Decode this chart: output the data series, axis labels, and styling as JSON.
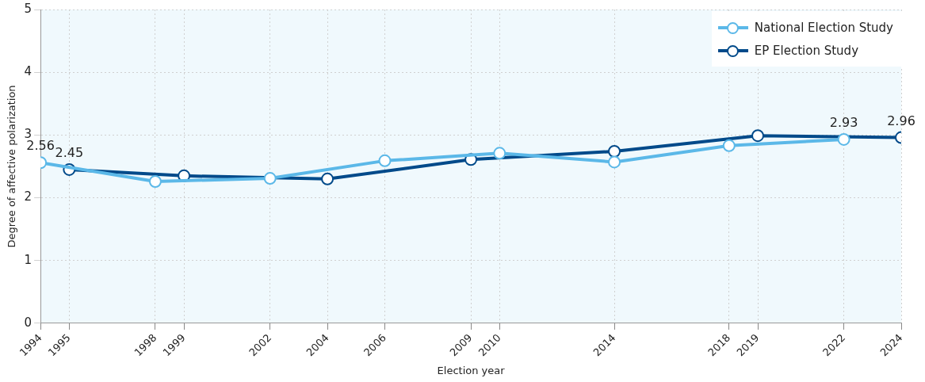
{
  "chart_data": {
    "type": "line",
    "xlabel": "Election year",
    "ylabel": "Degree of affective polarization",
    "xlim": [
      1994,
      2024
    ],
    "xticks": [
      1994,
      1995,
      1998,
      1999,
      2002,
      2004,
      2006,
      2009,
      2010,
      2014,
      2018,
      2019,
      2022,
      2024
    ],
    "ylim": [
      0,
      5
    ],
    "yticks": [
      0,
      1,
      2,
      3,
      4,
      5
    ],
    "grid": true,
    "legend": "top right",
    "marker": "circle",
    "line_style": "solid",
    "series": [
      {
        "name": "National Election Study",
        "color": "#5bb8e8",
        "x": [
          1994,
          1998,
          2002,
          2006,
          2010,
          2014,
          2018,
          2022
        ],
        "values": [
          2.56,
          2.26,
          2.31,
          2.59,
          2.71,
          2.57,
          2.83,
          2.93
        ],
        "value_labels": [
          "2.56",
          null,
          null,
          null,
          null,
          null,
          null,
          "2.93"
        ]
      },
      {
        "name": "EP Election Study",
        "color": "#004a8a",
        "x": [
          1995,
          1999,
          2004,
          2009,
          2014,
          2019,
          2024
        ],
        "values": [
          2.45,
          2.35,
          2.3,
          2.61,
          2.74,
          2.99,
          2.96
        ],
        "value_labels": [
          "2.45",
          null,
          null,
          null,
          null,
          null,
          "2.96"
        ]
      }
    ]
  }
}
